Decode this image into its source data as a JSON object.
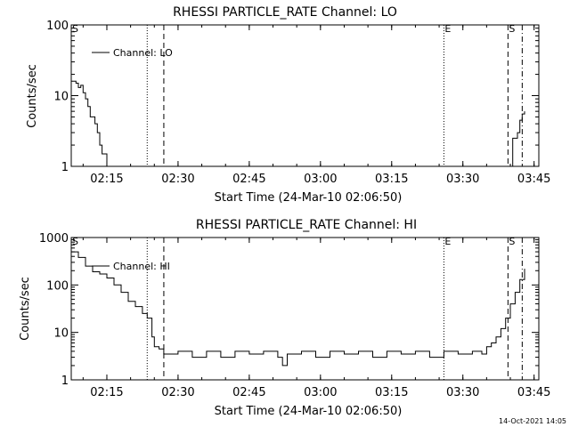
{
  "footer_timestamp": "14-Oct-2021 14:05",
  "chart_data": [
    {
      "type": "line",
      "title": "RHESSI PARTICLE_RATE Channel: LO",
      "xlabel": "Start Time (24-Mar-10 02:06:50)",
      "ylabel": "Counts/sec",
      "y_scale": "log",
      "ylim": [
        1,
        100
      ],
      "xlim": [
        "02:07:30",
        "03:46:00"
      ],
      "x_ticks": [
        "02:15",
        "02:30",
        "02:45",
        "03:00",
        "03:15",
        "03:30",
        "03:45"
      ],
      "y_ticks": [
        "1",
        "10",
        "100"
      ],
      "legend": {
        "entries": [
          "Channel: LO"
        ],
        "placement": "top-left"
      },
      "markers": [
        {
          "label": "S",
          "time": "02:07:30",
          "style": "solid"
        },
        {
          "label": "",
          "time": "02:23:30",
          "style": "dotted"
        },
        {
          "label": "",
          "time": "02:27:00",
          "style": "dashed"
        },
        {
          "label": "E",
          "time": "03:26:00",
          "style": "dotted"
        },
        {
          "label": "S",
          "time": "03:39:30",
          "style": "dashed"
        },
        {
          "label": "",
          "time": "03:42:30",
          "style": "dashdot"
        }
      ],
      "series": [
        {
          "name": "Channel: LO",
          "segments": [
            {
              "x": [
                "02:07:30",
                "02:08:30",
                "02:09:00",
                "02:09:30",
                "02:10:00",
                "02:10:30",
                "02:11:00",
                "02:11:30",
                "02:12:00",
                "02:12:30",
                "02:13:00",
                "02:13:30",
                "02:14:00",
                "02:14:30",
                "02:15:00"
              ],
              "y": [
                16,
                15,
                13,
                14,
                11,
                9,
                7,
                5,
                5,
                4,
                3,
                2,
                1.5,
                1.5,
                1
              ]
            },
            {
              "x": [
                "03:40:00",
                "03:40:30",
                "03:41:00",
                "03:41:30",
                "03:42:00",
                "03:42:30",
                "03:43:00"
              ],
              "y": [
                1,
                2.5,
                2.5,
                3,
                4.5,
                5.5,
                6
              ]
            }
          ]
        }
      ]
    },
    {
      "type": "line",
      "title": "RHESSI PARTICLE_RATE Channel: HI",
      "xlabel": "Start Time (24-Mar-10 02:06:50)",
      "ylabel": "Counts/sec",
      "y_scale": "log",
      "ylim": [
        1,
        1000
      ],
      "xlim": [
        "02:07:30",
        "03:46:00"
      ],
      "x_ticks": [
        "02:15",
        "02:30",
        "02:45",
        "03:00",
        "03:15",
        "03:30",
        "03:45"
      ],
      "y_ticks": [
        "1",
        "10",
        "100",
        "1000"
      ],
      "legend": {
        "entries": [
          "Channel: HI"
        ],
        "placement": "top-left"
      },
      "markers": [
        {
          "label": "S",
          "time": "02:07:30",
          "style": "solid"
        },
        {
          "label": "",
          "time": "02:23:30",
          "style": "dotted"
        },
        {
          "label": "",
          "time": "02:27:00",
          "style": "dashed"
        },
        {
          "label": "E",
          "time": "03:26:00",
          "style": "dotted"
        },
        {
          "label": "S",
          "time": "03:39:30",
          "style": "dashed"
        },
        {
          "label": "",
          "time": "03:42:30",
          "style": "dashdot"
        }
      ],
      "series": [
        {
          "name": "Channel: HI",
          "segments": [
            {
              "x": [
                "02:07:30",
                "02:09:00",
                "02:10:30",
                "02:12:00",
                "02:13:30",
                "02:15:00",
                "02:16:30",
                "02:18:00",
                "02:19:30",
                "02:21:00",
                "02:22:30",
                "02:23:30",
                "02:24:30",
                "02:25:00",
                "02:26:00",
                "02:27:00",
                "02:30:00",
                "02:33:00",
                "02:36:00",
                "02:39:00",
                "02:42:00",
                "02:45:00",
                "02:48:00",
                "02:51:00",
                "02:52:00",
                "02:53:00",
                "02:56:00",
                "02:59:00",
                "03:02:00",
                "03:05:00",
                "03:08:00",
                "03:11:00",
                "03:14:00",
                "03:17:00",
                "03:20:00",
                "03:23:00",
                "03:26:00",
                "03:29:00",
                "03:32:00",
                "03:34:00",
                "03:35:00",
                "03:36:00",
                "03:37:00",
                "03:38:00",
                "03:39:00",
                "03:40:00",
                "03:41:00",
                "03:42:00",
                "03:43:00"
              ],
              "y": [
                500,
                380,
                250,
                190,
                170,
                140,
                100,
                70,
                45,
                35,
                25,
                20,
                8,
                5,
                4.5,
                3.5,
                4,
                3,
                4,
                3,
                4,
                3.5,
                4,
                3,
                2,
                3.5,
                4,
                3,
                4,
                3.5,
                4,
                3,
                4,
                3.5,
                4,
                3,
                4,
                3.5,
                4,
                3.5,
                5,
                6,
                8,
                12,
                20,
                40,
                70,
                130,
                220
              ]
            }
          ]
        }
      ]
    }
  ]
}
